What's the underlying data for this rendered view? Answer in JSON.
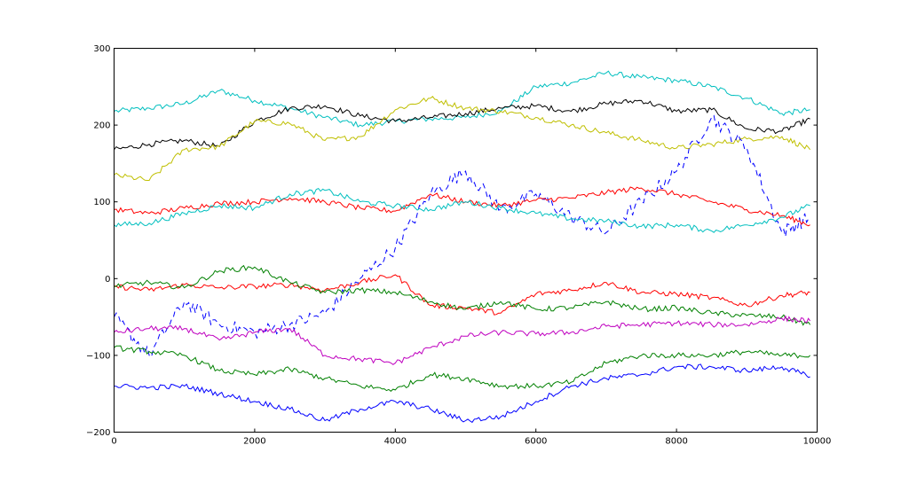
{
  "chart_data": {
    "type": "line",
    "title": "",
    "xlabel": "",
    "ylabel": "",
    "xlim": [
      0,
      10000
    ],
    "ylim": [
      -200,
      300
    ],
    "grid": false,
    "x_ticks": [
      0,
      2000,
      4000,
      6000,
      8000,
      10000
    ],
    "y_ticks": [
      -200,
      -100,
      0,
      100,
      200,
      300
    ],
    "x_tick_labels": [
      "0",
      "2000",
      "4000",
      "6000",
      "8000",
      "10000"
    ],
    "y_tick_labels": [
      "−200",
      "−100",
      "0",
      "100",
      "200",
      "300"
    ],
    "x": [
      0,
      500,
      1000,
      1500,
      2000,
      2500,
      3000,
      3500,
      4000,
      4500,
      5000,
      5500,
      6000,
      6500,
      7000,
      7500,
      8000,
      8500,
      9000,
      9500,
      9900
    ],
    "series": [
      {
        "color": "#00bfbf",
        "style": "solid",
        "values": [
          218,
          222,
          228,
          245,
          232,
          222,
          210,
          200,
          205,
          208,
          210,
          218,
          250,
          255,
          268,
          262,
          258,
          250,
          235,
          215,
          220
        ]
      },
      {
        "color": "#000000",
        "style": "solid",
        "values": [
          168,
          175,
          180,
          172,
          205,
          222,
          225,
          212,
          205,
          210,
          215,
          222,
          225,
          218,
          228,
          232,
          218,
          220,
          195,
          192,
          208
        ]
      },
      {
        "color": "#bfbf00",
        "style": "solid",
        "values": [
          135,
          128,
          168,
          172,
          205,
          202,
          180,
          185,
          220,
          235,
          222,
          218,
          210,
          200,
          190,
          180,
          170,
          175,
          182,
          185,
          168
        ]
      },
      {
        "color": "#0000ff",
        "style": "dashed",
        "values": [
          -50,
          -100,
          -30,
          -60,
          -70,
          -60,
          -45,
          0,
          40,
          110,
          140,
          90,
          110,
          80,
          60,
          100,
          140,
          210,
          170,
          60,
          80
        ]
      },
      {
        "color": "#ff0000",
        "style": "solid",
        "values": [
          90,
          85,
          92,
          98,
          100,
          105,
          100,
          92,
          88,
          110,
          100,
          95,
          102,
          105,
          112,
          118,
          110,
          100,
          90,
          82,
          70
        ]
      },
      {
        "color": "#00bfbf",
        "style": "solid",
        "values": [
          70,
          72,
          85,
          95,
          92,
          110,
          115,
          100,
          95,
          90,
          100,
          92,
          85,
          78,
          75,
          68,
          70,
          62,
          70,
          80,
          95
        ]
      },
      {
        "color": "#ff0000",
        "style": "solid",
        "values": [
          -10,
          -15,
          -8,
          -12,
          -10,
          -8,
          -15,
          -5,
          5,
          -35,
          -38,
          -45,
          -20,
          -15,
          -5,
          -18,
          -20,
          -25,
          -35,
          -22,
          -18
        ]
      },
      {
        "color": "#008000",
        "style": "solid",
        "values": [
          -10,
          -5,
          -12,
          10,
          15,
          -5,
          -18,
          -15,
          -18,
          -30,
          -40,
          -30,
          -40,
          -38,
          -30,
          -40,
          -38,
          -45,
          -48,
          -50,
          -60
        ]
      },
      {
        "color": "#bf00bf",
        "style": "solid",
        "values": [
          -70,
          -65,
          -65,
          -80,
          -70,
          -65,
          -100,
          -105,
          -110,
          -90,
          -75,
          -70,
          -72,
          -70,
          -62,
          -60,
          -58,
          -60,
          -60,
          -52,
          -55
        ]
      },
      {
        "color": "#008000",
        "style": "solid",
        "values": [
          -90,
          -95,
          -100,
          -120,
          -125,
          -118,
          -130,
          -140,
          -145,
          -125,
          -130,
          -140,
          -140,
          -135,
          -110,
          -100,
          -100,
          -100,
          -95,
          -100,
          -100
        ]
      },
      {
        "color": "#0000ff",
        "style": "solid",
        "values": [
          -140,
          -142,
          -140,
          -150,
          -160,
          -170,
          -185,
          -170,
          -160,
          -170,
          -185,
          -180,
          -160,
          -140,
          -130,
          -125,
          -115,
          -115,
          -120,
          -115,
          -128
        ]
      }
    ]
  }
}
